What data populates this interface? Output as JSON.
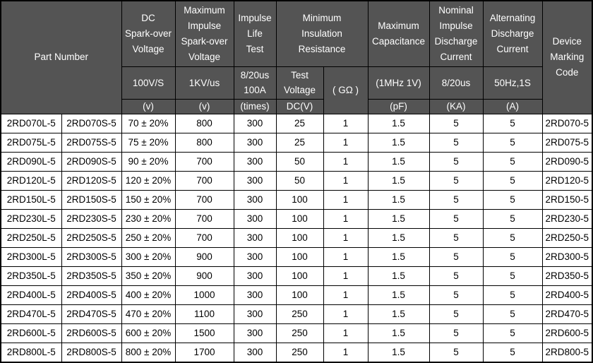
{
  "colors": {
    "header_bg": "#545454",
    "header_text": "#ffffff",
    "border": "#000000",
    "cell_bg": "#ffffff",
    "cell_text": "#000000"
  },
  "table": {
    "header": {
      "groups": [
        "Part Number",
        "DC\nSpark-over\nVoltage",
        "Maximum\nImpulse\nSpark-over\nVoltage",
        "Impulse\nLife\nTest",
        "Minimum\nInsulation\nResistance",
        "Maximum\nCapacitance",
        "Nominal\nImpulse\nDischarge\nCurrent",
        "Alternating\nDischarge\nCurrent",
        "Device\nMarking\nCode"
      ],
      "conditions": [
        "100V/S",
        "1KV/us",
        "8/20us\n100A",
        "Test\nVoltage",
        "( GΩ )",
        "(1MHz 1V)",
        "8/20us",
        "50Hz,1S"
      ],
      "units": [
        "(v)",
        "(v)",
        "(times)",
        "DC(V)",
        "(pF)",
        "(KA)",
        "(A)"
      ]
    },
    "column_keys": [
      "part-number-l",
      "part-number-s",
      "dc-sparkover-voltage",
      "max-impulse-sparkover-voltage",
      "impulse-life-test",
      "insulation-test-voltage",
      "insulation-resistance",
      "capacitance",
      "impulse-discharge-current",
      "alternating-discharge-current",
      "device-marking-code"
    ],
    "rows": [
      [
        "2RD070L-5",
        "2RD070S-5",
        "70 ± 20%",
        "800",
        "300",
        "25",
        "1",
        "1.5",
        "5",
        "5",
        "2RD070-5"
      ],
      [
        "2RD075L-5",
        "2RD075S-5",
        "75 ± 20%",
        "800",
        "300",
        "25",
        "1",
        "1.5",
        "5",
        "5",
        "2RD075-5"
      ],
      [
        "2RD090L-5",
        "2RD090S-5",
        "90 ± 20%",
        "700",
        "300",
        "50",
        "1",
        "1.5",
        "5",
        "5",
        "2RD090-5"
      ],
      [
        "2RD120L-5",
        "2RD120S-5",
        "120 ± 20%",
        "700",
        "300",
        "50",
        "1",
        "1.5",
        "5",
        "5",
        "2RD120-5"
      ],
      [
        "2RD150L-5",
        "2RD150S-5",
        "150 ± 20%",
        "700",
        "300",
        "100",
        "1",
        "1.5",
        "5",
        "5",
        "2RD150-5"
      ],
      [
        "2RD230L-5",
        "2RD230S-5",
        "230 ± 20%",
        "700",
        "300",
        "100",
        "1",
        "1.5",
        "5",
        "5",
        "2RD230-5"
      ],
      [
        "2RD250L-5",
        "2RD250S-5",
        "250 ± 20%",
        "700",
        "300",
        "100",
        "1",
        "1.5",
        "5",
        "5",
        "2RD250-5"
      ],
      [
        "2RD300L-5",
        "2RD300S-5",
        "300 ± 20%",
        "900",
        "300",
        "100",
        "1",
        "1.5",
        "5",
        "5",
        "2RD300-5"
      ],
      [
        "2RD350L-5",
        "2RD350S-5",
        "350 ± 20%",
        "900",
        "300",
        "100",
        "1",
        "1.5",
        "5",
        "5",
        "2RD350-5"
      ],
      [
        "2RD400L-5",
        "2RD400S-5",
        "400 ± 20%",
        "1000",
        "300",
        "100",
        "1",
        "1.5",
        "5",
        "5",
        "2RD400-5"
      ],
      [
        "2RD470L-5",
        "2RD470S-5",
        "470 ± 20%",
        "1100",
        "300",
        "250",
        "1",
        "1.5",
        "5",
        "5",
        "2RD470-5"
      ],
      [
        "2RD600L-5",
        "2RD600S-5",
        "600 ± 20%",
        "1500",
        "300",
        "250",
        "1",
        "1.5",
        "5",
        "5",
        "2RD600-5"
      ],
      [
        "2RD800L-5",
        "2RD800S-5",
        "800 ± 20%",
        "1700",
        "300",
        "250",
        "1",
        "1.5",
        "5",
        "5",
        "2RD800-5"
      ]
    ]
  }
}
